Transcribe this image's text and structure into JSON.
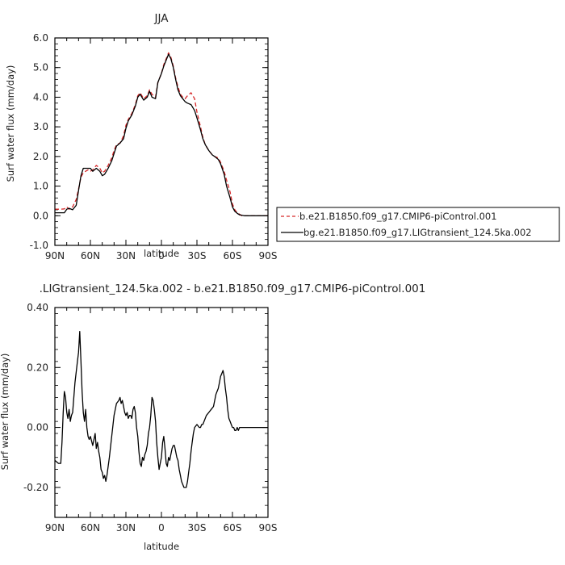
{
  "chart_data": [
    {
      "type": "line",
      "title": "JJA",
      "xlabel": "latitude",
      "ylabel": "Surf water flux (mm/day)",
      "xlim": [
        90,
        -90
      ],
      "ylim": [
        -1.0,
        6.0
      ],
      "x_ticks": [
        90,
        60,
        30,
        0,
        -30,
        -60,
        -90
      ],
      "x_tick_labels": [
        "90N",
        "60N",
        "30N",
        "0",
        "30S",
        "60S",
        "90S"
      ],
      "y_ticks": [
        -1.0,
        0.0,
        1.0,
        2.0,
        3.0,
        4.0,
        5.0,
        6.0
      ],
      "y_tick_labels": [
        "-1.0",
        "0.0",
        "1.0",
        "2.0",
        "3.0",
        "4.0",
        "5.0",
        "6.0"
      ],
      "legend": "right",
      "series": [
        {
          "name": "b.e21.B1850.f09_g17.CMIP6-piControl.001",
          "color": "#d62728",
          "dash": "dashed",
          "x": [
            90,
            85,
            82,
            80,
            78,
            75,
            72,
            70,
            68,
            66,
            64,
            62,
            60,
            58,
            55,
            52,
            50,
            48,
            45,
            42,
            40,
            38,
            35,
            32,
            30,
            28,
            25,
            22,
            20,
            18,
            15,
            12,
            10,
            8,
            5,
            3,
            0,
            -2,
            -4,
            -6,
            -8,
            -10,
            -12,
            -14,
            -16,
            -18,
            -20,
            -22,
            -25,
            -28,
            -30,
            -33,
            -35,
            -37,
            -40,
            -43,
            -45,
            -48,
            -50,
            -53,
            -55,
            -58,
            -60,
            -62,
            -64,
            -66,
            -68,
            -70,
            -72,
            -75,
            -78,
            -80,
            -85,
            -90
          ],
          "y": [
            0.22,
            0.22,
            0.23,
            0.3,
            0.22,
            0.3,
            0.55,
            0.9,
            1.3,
            1.45,
            1.5,
            1.55,
            1.5,
            1.55,
            1.7,
            1.6,
            1.45,
            1.5,
            1.7,
            1.95,
            2.2,
            2.4,
            2.45,
            2.7,
            3.05,
            3.25,
            3.45,
            3.75,
            4.05,
            4.15,
            3.95,
            4.05,
            4.25,
            4.1,
            4.0,
            4.5,
            4.8,
            5.1,
            5.3,
            5.5,
            5.35,
            5.05,
            4.65,
            4.35,
            4.1,
            4.0,
            3.95,
            4.05,
            4.15,
            3.95,
            3.5,
            3.0,
            2.65,
            2.4,
            2.2,
            2.05,
            2.0,
            1.95,
            1.8,
            1.5,
            1.2,
            0.8,
            0.4,
            0.2,
            0.1,
            0.05,
            0.0,
            0.0,
            0.0,
            0.0,
            0.0,
            0.0,
            0.0,
            0.0
          ]
        },
        {
          "name": "bg.e21.B1850.f09_g17.LIGtransient_124.5ka.002",
          "color": "#000000",
          "dash": "solid",
          "x": [
            90,
            85,
            82,
            80,
            78,
            75,
            72,
            70,
            68,
            66,
            64,
            62,
            60,
            58,
            55,
            52,
            50,
            48,
            45,
            42,
            40,
            38,
            35,
            32,
            30,
            28,
            25,
            22,
            20,
            18,
            15,
            12,
            10,
            8,
            5,
            3,
            0,
            -2,
            -4,
            -6,
            -8,
            -10,
            -12,
            -14,
            -16,
            -18,
            -20,
            -22,
            -25,
            -28,
            -30,
            -33,
            -35,
            -37,
            -40,
            -43,
            -45,
            -48,
            -50,
            -53,
            -55,
            -58,
            -60,
            -62,
            -64,
            -66,
            -68,
            -70,
            -72,
            -75,
            -78,
            -80,
            -85,
            -90
          ],
          "y": [
            0.1,
            0.1,
            0.1,
            0.22,
            0.25,
            0.2,
            0.35,
            0.85,
            1.35,
            1.6,
            1.6,
            1.6,
            1.6,
            1.5,
            1.6,
            1.5,
            1.35,
            1.4,
            1.6,
            1.85,
            2.1,
            2.35,
            2.45,
            2.6,
            2.95,
            3.2,
            3.4,
            3.7,
            4.0,
            4.1,
            3.9,
            4.0,
            4.2,
            4.0,
            3.95,
            4.5,
            4.8,
            5.05,
            5.25,
            5.45,
            5.3,
            5.0,
            4.6,
            4.25,
            4.05,
            3.95,
            3.85,
            3.8,
            3.75,
            3.55,
            3.3,
            2.9,
            2.6,
            2.4,
            2.2,
            2.05,
            2.0,
            1.9,
            1.75,
            1.4,
            1.0,
            0.6,
            0.3,
            0.15,
            0.08,
            0.03,
            0.02,
            0.0,
            0.0,
            0.0,
            0.0,
            0.0,
            0.0,
            0.0
          ]
        }
      ]
    },
    {
      "type": "line",
      "title": ".LIGtransient_124.5ka.002 - b.e21.B1850.f09_g17.CMIP6-piControl.001",
      "xlabel": "latitude",
      "ylabel": "Surf water flux (mm/day)",
      "xlim": [
        90,
        -90
      ],
      "ylim": [
        -0.3,
        0.4
      ],
      "x_ticks": [
        90,
        60,
        30,
        0,
        -30,
        -60,
        -90
      ],
      "x_tick_labels": [
        "90N",
        "60N",
        "30N",
        "0",
        "30S",
        "60S",
        "90S"
      ],
      "y_ticks": [
        -0.2,
        0.0,
        0.2,
        0.4
      ],
      "y_tick_labels": [
        "-0.20",
        "0.00",
        "0.20",
        "0.40"
      ],
      "series": [
        {
          "color": "#000000",
          "x": [
            90,
            87,
            85,
            84,
            83,
            82,
            81,
            80,
            79,
            78,
            77,
            76,
            75,
            73,
            71,
            70,
            69,
            68,
            67,
            66,
            65,
            64,
            63,
            62,
            61,
            60,
            58,
            57,
            56,
            55,
            54,
            53,
            52,
            51,
            50,
            49,
            48,
            47,
            46,
            44,
            42,
            40,
            38,
            36,
            35,
            34,
            33,
            32,
            31,
            30,
            29,
            28,
            27,
            26,
            25,
            24,
            23,
            22,
            21,
            20,
            19,
            18,
            17,
            16,
            15,
            14,
            13,
            12,
            11,
            10,
            9,
            8,
            7,
            6,
            5,
            4,
            3,
            2,
            1,
            0,
            -1,
            -2,
            -3,
            -4,
            -5,
            -6,
            -7,
            -8,
            -9,
            -10,
            -11,
            -12,
            -13,
            -14,
            -15,
            -16,
            -17,
            -18,
            -19,
            -20,
            -21,
            -22,
            -23,
            -24,
            -25,
            -26,
            -27,
            -28,
            -30,
            -32,
            -33,
            -34,
            -35,
            -36,
            -38,
            -40,
            -42,
            -44,
            -45,
            -46,
            -47,
            -48,
            -49,
            -50,
            -51,
            -52,
            -53,
            -54,
            -55,
            -56,
            -57,
            -58,
            -59,
            -60,
            -61,
            -62,
            -63,
            -64,
            -65,
            -66,
            -67,
            -68,
            -70,
            -72,
            -74,
            -76,
            -78,
            -80,
            -85,
            -90
          ],
          "y": [
            -0.11,
            -0.12,
            -0.12,
            -0.05,
            0.05,
            0.12,
            0.1,
            0.05,
            0.03,
            0.06,
            0.02,
            0.04,
            0.05,
            0.15,
            0.22,
            0.25,
            0.32,
            0.22,
            0.12,
            0.05,
            0.02,
            0.06,
            0.0,
            -0.03,
            -0.04,
            -0.03,
            -0.06,
            -0.04,
            -0.02,
            -0.07,
            -0.05,
            -0.08,
            -0.1,
            -0.14,
            -0.15,
            -0.17,
            -0.16,
            -0.18,
            -0.16,
            -0.1,
            -0.03,
            0.04,
            0.08,
            0.09,
            0.1,
            0.08,
            0.09,
            0.07,
            0.05,
            0.04,
            0.05,
            0.03,
            0.04,
            0.04,
            0.03,
            0.06,
            0.07,
            0.05,
            0.0,
            -0.03,
            -0.08,
            -0.12,
            -0.13,
            -0.1,
            -0.11,
            -0.09,
            -0.08,
            -0.06,
            -0.02,
            0.0,
            0.04,
            0.1,
            0.09,
            0.06,
            0.02,
            -0.05,
            -0.1,
            -0.14,
            -0.12,
            -0.1,
            -0.05,
            -0.03,
            -0.07,
            -0.12,
            -0.13,
            -0.1,
            -0.11,
            -0.09,
            -0.07,
            -0.06,
            -0.06,
            -0.08,
            -0.1,
            -0.11,
            -0.14,
            -0.16,
            -0.18,
            -0.19,
            -0.2,
            -0.2,
            -0.2,
            -0.18,
            -0.15,
            -0.12,
            -0.08,
            -0.05,
            -0.02,
            0.0,
            0.01,
            0.0,
            0.0,
            0.01,
            0.01,
            0.02,
            0.04,
            0.05,
            0.06,
            0.07,
            0.09,
            0.11,
            0.12,
            0.13,
            0.15,
            0.17,
            0.18,
            0.19,
            0.17,
            0.13,
            0.1,
            0.06,
            0.03,
            0.02,
            0.01,
            0.0,
            0.0,
            -0.01,
            -0.01,
            0.0,
            -0.01,
            0.0,
            0.0,
            0.0,
            0.0,
            0.0,
            0.0,
            0.0,
            0.0,
            0.0,
            0.0,
            0.0
          ]
        }
      ]
    }
  ]
}
